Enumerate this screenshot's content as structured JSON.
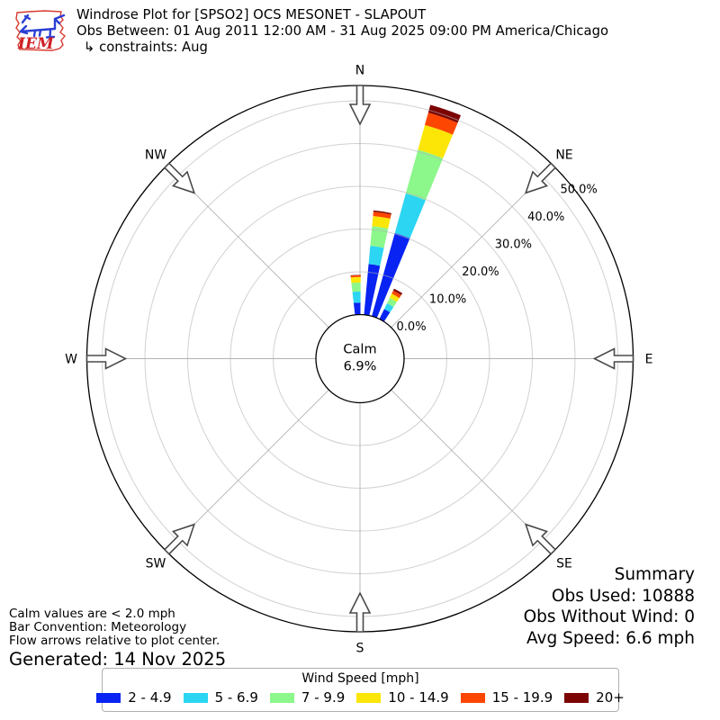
{
  "header": {
    "title": "Windrose Plot for [SPSO2] OCS MESONET - SLAPOUT",
    "subtitle": "Obs Between: 01 Aug 2011 12:00 AM - 31 Aug 2025 09:00 PM America/Chicago",
    "constraints": "↳ constraints: Aug",
    "logo_text": "IEM"
  },
  "notes": {
    "calm_note": "Calm values are < 2.0 mph",
    "convention_note": "Bar Convention: Meteorology",
    "arrows_note": "Flow arrows relative to plot center.",
    "generated": "Generated: 14 Nov 2025"
  },
  "summary": {
    "title": "Summary",
    "obs_used": "Obs Used: 10888",
    "obs_without_wind": "Obs Without Wind: 0",
    "avg_speed": "Avg Speed: 6.6 mph"
  },
  "chart_data": {
    "type": "windrose",
    "title": "Windrose Plot for [SPSO2] OCS MESONET - SLAPOUT",
    "units": "mph",
    "calm_percent": 6.9,
    "calm_label_lines": [
      "Calm",
      "6.9%"
    ],
    "radial_axis": {
      "tick_labels": [
        "0.0%",
        "10.0%",
        "20.0%",
        "30.0%",
        "40.0%",
        "50.0%"
      ],
      "tick_values": [
        0,
        10,
        20,
        30,
        40,
        50
      ]
    },
    "compass_points": [
      {
        "label": "N",
        "deg": 0
      },
      {
        "label": "NE",
        "deg": 45
      },
      {
        "label": "E",
        "deg": 90
      },
      {
        "label": "SE",
        "deg": 135
      },
      {
        "label": "S",
        "deg": 180
      },
      {
        "label": "SW",
        "deg": 225
      },
      {
        "label": "W",
        "deg": 270
      },
      {
        "label": "NW",
        "deg": 315
      }
    ],
    "legend_title": "Wind Speed [mph]",
    "speed_bins": [
      {
        "label": "2 - 4.9",
        "color": "#0823f2"
      },
      {
        "label": "5 - 6.9",
        "color": "#2cd5f1"
      },
      {
        "label": "7 - 9.9",
        "color": "#8cf78b"
      },
      {
        "label": "10 - 14.9",
        "color": "#fbe607"
      },
      {
        "label": "15 - 19.9",
        "color": "#fd4602"
      },
      {
        "label": "20+",
        "color": "#7c0403"
      }
    ],
    "bar_width_deg": 7,
    "bars": [
      {
        "direction_deg": -3,
        "freq_pct_by_bin": [
          2.8,
          2.6,
          2.1,
          1.3,
          0.4,
          0.1
        ],
        "total_pct": 9.3
      },
      {
        "direction_deg": 8.7,
        "freq_pct_by_bin": [
          11.9,
          4.3,
          4.6,
          2.4,
          1.0,
          0.3
        ],
        "total_pct": 24.5
      },
      {
        "direction_deg": 19,
        "freq_pct_by_bin": [
          20.2,
          9.6,
          10.6,
          6.0,
          3.0,
          1.9
        ],
        "total_pct": 51.3
      },
      {
        "direction_deg": 29.5,
        "freq_pct_by_bin": [
          2.6,
          1.5,
          1.4,
          1.1,
          0.8,
          0.5
        ],
        "total_pct": 7.9
      }
    ]
  }
}
